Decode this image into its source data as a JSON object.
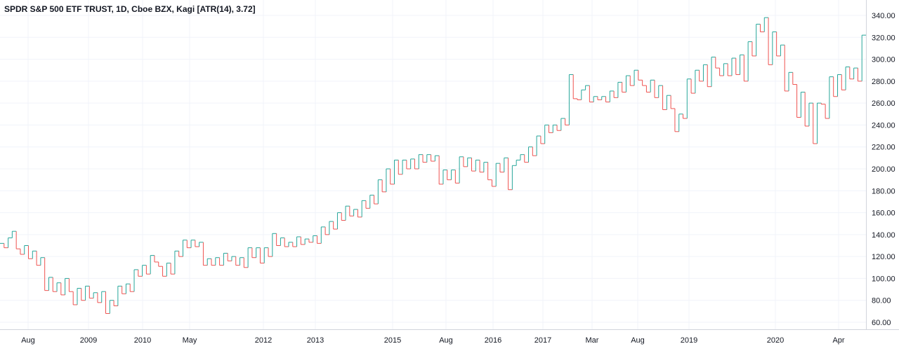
{
  "chart_data": {
    "type": "line",
    "title": "SPDR S&P 500 ETF TRUST, 1D, Cboe BZX, Kagi [ATR(14), 3.72]",
    "y_ticks": [
      "60.00",
      "80.00",
      "100.00",
      "120.00",
      "140.00",
      "160.00",
      "180.00",
      "200.00",
      "220.00",
      "240.00",
      "260.00",
      "280.00",
      "300.00",
      "320.00",
      "340.00"
    ],
    "ylim": [
      50,
      345
    ],
    "x_ticks": [
      {
        "label": "Aug",
        "at": 40
      },
      {
        "label": "2009",
        "at": 126
      },
      {
        "label": "2010",
        "at": 203
      },
      {
        "label": "May",
        "at": 270
      },
      {
        "label": "2012",
        "at": 375
      },
      {
        "label": "2013",
        "at": 449
      },
      {
        "label": "2015",
        "at": 559
      },
      {
        "label": "Aug",
        "at": 635
      },
      {
        "label": "2016",
        "at": 702
      },
      {
        "label": "2017",
        "at": 773
      },
      {
        "label": "Mar",
        "at": 843
      },
      {
        "label": "Aug",
        "at": 908
      },
      {
        "label": "2019",
        "at": 981
      },
      {
        "label": "2020",
        "at": 1104
      },
      {
        "label": "Apr",
        "at": 1194
      }
    ],
    "grid": true,
    "colors": {
      "up": "#26a69a",
      "down": "#ef5350",
      "grid": "#f0f3fa",
      "axis": "#d1d4dc"
    },
    "series": [
      {
        "values": [
          132,
          128,
          137,
          143,
          127,
          122,
          130,
          118,
          125,
          112,
          119,
          89,
          101,
          88,
          96,
          85,
          100,
          88,
          76,
          91,
          80,
          93,
          82,
          87,
          78,
          88,
          68,
          80,
          75,
          93,
          86,
          95,
          88,
          108,
          102,
          112,
          104,
          121,
          115,
          111,
          102,
          114,
          104,
          125,
          120,
          135,
          128,
          135,
          129,
          133,
          112,
          118,
          112,
          119,
          112,
          123,
          116,
          120,
          112,
          119,
          110,
          128,
          119,
          128,
          114,
          128,
          120,
          141,
          130,
          137,
          129,
          133,
          129,
          138,
          131,
          136,
          133,
          139,
          132,
          147,
          140,
          152,
          145,
          160,
          153,
          166,
          157,
          163,
          156,
          171,
          164,
          176,
          168,
          190,
          179,
          200,
          186,
          208,
          195,
          208,
          200,
          209,
          200,
          213,
          206,
          213,
          207,
          212,
          186,
          199,
          190,
          199,
          187,
          211,
          202,
          210,
          198,
          208,
          197,
          206,
          190,
          184,
          205,
          197,
          210,
          181,
          203,
          208,
          213,
          206,
          220,
          212,
          230,
          223,
          240,
          233,
          240,
          235,
          246,
          240,
          286,
          264,
          263,
          272,
          276,
          261,
          266,
          263,
          266,
          261,
          271,
          265,
          279,
          270,
          285,
          276,
          290,
          281,
          276,
          270,
          281,
          265,
          276,
          254,
          267,
          255,
          234,
          250,
          246,
          282,
          269,
          290,
          280,
          295,
          275,
          302,
          292,
          285,
          296,
          285,
          301,
          286,
          304,
          280,
          316,
          303,
          332,
          325,
          338,
          295,
          325,
          303,
          313,
          271,
          288,
          277,
          247,
          270,
          239,
          260,
          223,
          260,
          259,
          246,
          284,
          266,
          286,
          272,
          293,
          282,
          292,
          280,
          322
        ]
      }
    ]
  }
}
